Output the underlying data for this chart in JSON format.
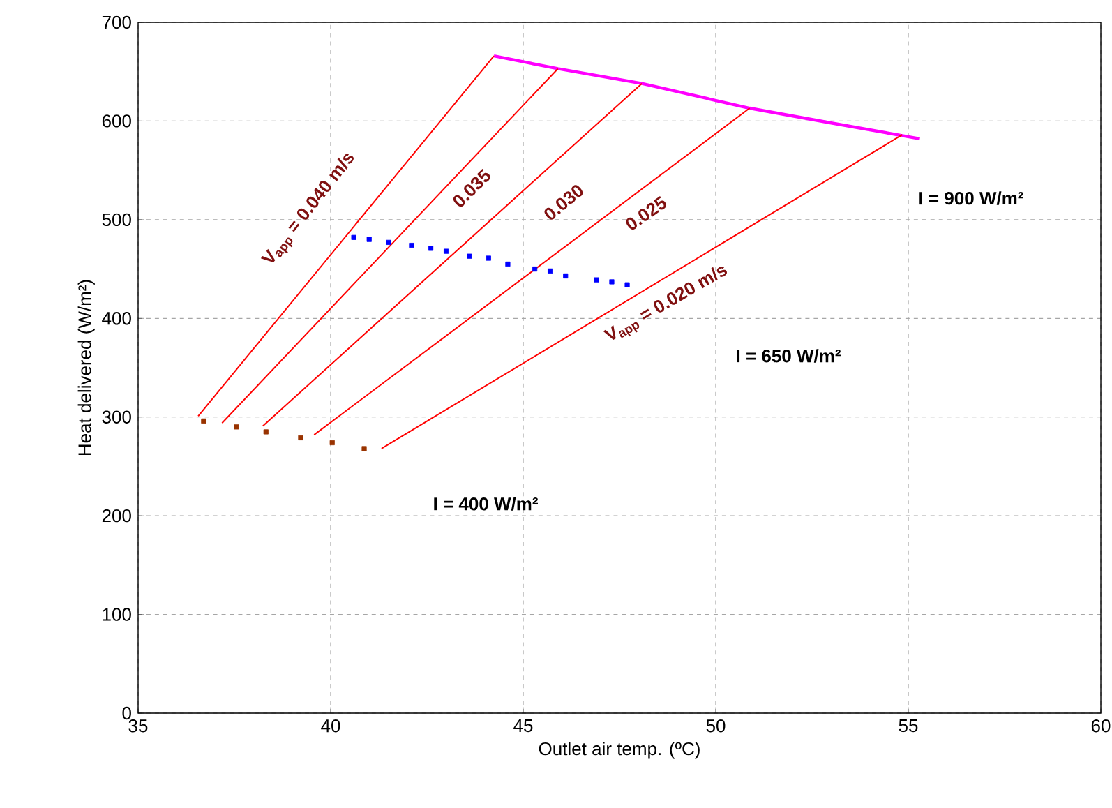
{
  "chart_data": {
    "type": "line",
    "xlabel": "Outlet air temp. (ºC)",
    "ylabel": "Heat delivered (W/m²)",
    "xlim": [
      35,
      60
    ],
    "ylim": [
      0,
      700
    ],
    "xticks": [
      35,
      40,
      45,
      50,
      55,
      60
    ],
    "yticks": [
      0,
      100,
      200,
      300,
      400,
      500,
      600,
      700
    ],
    "grid": true,
    "series": [
      {
        "color": "#ff00ff",
        "marker": "none",
        "x": [
          44.24,
          45.9,
          48.08,
          50.88,
          53.0,
          55.3
        ],
        "values": [
          666,
          653,
          638,
          613,
          598,
          582
        ]
      },
      {
        "type": "line",
        "color": "#ff0000",
        "marker": "none",
        "x": [
          36.56,
          44.24
        ],
        "values": [
          301,
          666
        ]
      },
      {
        "type": "line",
        "color": "#ff0000",
        "marker": "none",
        "x": [
          37.18,
          45.9
        ],
        "values": [
          294,
          653
        ]
      },
      {
        "type": "line",
        "color": "#ff0000",
        "marker": "none",
        "x": [
          38.24,
          48.08
        ],
        "values": [
          291,
          638
        ]
      },
      {
        "type": "line",
        "color": "#ff0000",
        "marker": "none",
        "x": [
          39.57,
          50.88
        ],
        "values": [
          282,
          613
        ]
      },
      {
        "type": "line",
        "color": "#ff0000",
        "marker": "none",
        "x": [
          41.32,
          54.84
        ],
        "values": [
          268,
          586
        ]
      },
      {
        "type": "scatter",
        "color": "#0000ff",
        "marker": "square",
        "x": [
          40.6,
          41.0,
          41.5,
          42.1,
          42.6,
          43.0,
          43.6,
          44.1,
          44.6,
          45.3,
          45.7,
          46.1,
          46.9,
          47.3,
          47.7
        ],
        "values": [
          482,
          480,
          477,
          474,
          471,
          468,
          463,
          461,
          455,
          450,
          448,
          443,
          439,
          437,
          434
        ]
      },
      {
        "type": "scatter",
        "color": "#993300",
        "marker": "square",
        "x": [
          36.7,
          37.55,
          38.32,
          39.22,
          40.04,
          40.87
        ],
        "values": [
          296,
          290,
          285,
          279,
          274,
          268
        ]
      }
    ],
    "annotations": [
      "V$_{app}$ = 0.040 m/s",
      "0.035",
      "0.030",
      "0.025",
      "V$_{app}$ = 0.020 m/s",
      "I = 900 W/m²",
      "I = 650 W/m²",
      "I = 400 W/m²"
    ]
  }
}
